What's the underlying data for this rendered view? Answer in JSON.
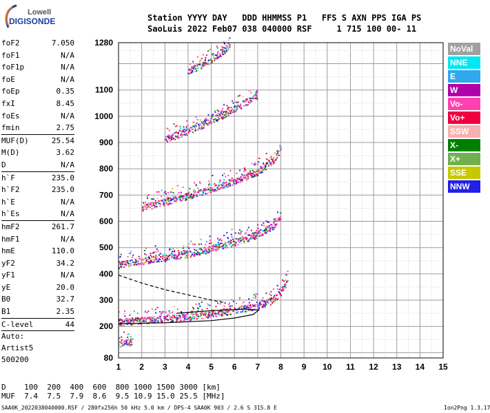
{
  "logo": {
    "line1": "Lowell",
    "line2": "DIGISONDE"
  },
  "header": {
    "row1": "Station YYYY DAY   DDD HHMMSS P1   FFS S AXN PPS IGA PS",
    "row2": "SaoLuis 2022 Feb07 038 040000 RSF     1 715 100 00- 11"
  },
  "params": [
    {
      "k": "foF2",
      "v": "7.050"
    },
    {
      "k": "foF1",
      "v": "N/A"
    },
    {
      "k": "foF1p",
      "v": "N/A"
    },
    {
      "k": "foE",
      "v": "N/A"
    },
    {
      "k": "foEp",
      "v": "0.35"
    },
    {
      "k": "fxI",
      "v": "8.45"
    },
    {
      "k": "foEs",
      "v": "N/A"
    },
    {
      "k": "fmin",
      "v": "2.75"
    },
    {
      "sep": true
    },
    {
      "k": "MUF(D)",
      "v": "25.54"
    },
    {
      "k": "M(D)",
      "v": "3.62"
    },
    {
      "k": "D",
      "v": "N/A"
    },
    {
      "sep": true
    },
    {
      "k": "h`F",
      "v": "235.0"
    },
    {
      "k": "h`F2",
      "v": "235.0"
    },
    {
      "k": "h`E",
      "v": "N/A"
    },
    {
      "k": "h`Es",
      "v": "N/A"
    },
    {
      "sep": true
    },
    {
      "k": "hmF2",
      "v": "261.7"
    },
    {
      "k": "hmF1",
      "v": "N/A"
    },
    {
      "k": "hmE",
      "v": "110.0"
    },
    {
      "k": "yF2",
      "v": "34.2"
    },
    {
      "k": "yF1",
      "v": "N/A"
    },
    {
      "k": "yE",
      "v": "20.0"
    },
    {
      "k": "B0",
      "v": "32.7"
    },
    {
      "k": "B1",
      "v": "2.35"
    },
    {
      "sep": true
    },
    {
      "k": "C-level",
      "v": "44"
    },
    {
      "sep": true
    }
  ],
  "auto": {
    "line1": "Auto:",
    "line2": "Artist5",
    "line3": "500200"
  },
  "muf_table": {
    "row1": "D    100  200  400  600  800 1000 1500 3000 [km]",
    "row2": "MUF  7.4  7.5  7.9  8.6  9.5 10.9 15.0 25.5 [MHz]"
  },
  "footer": "SAA0K_2022038040000.RSF / 280fx256h 50 kHz 5.0 km / DPS-4 SAA0K 903 / 2.6 S 315.8 E",
  "version": "Ion2Png 1.3.17",
  "legend": [
    {
      "label": "NoVal",
      "color": "#a0a0a0"
    },
    {
      "label": "NNE",
      "color": "#00e8f0"
    },
    {
      "label": "E",
      "color": "#30a8f0"
    },
    {
      "label": "W",
      "color": "#b000a8"
    },
    {
      "label": "Vo-",
      "color": "#ff40b0"
    },
    {
      "label": "Vo+",
      "color": "#f00040"
    },
    {
      "label": "SSW",
      "color": "#f8b0b0"
    },
    {
      "label": "X-",
      "color": "#008000"
    },
    {
      "label": "X+",
      "color": "#70b050"
    },
    {
      "label": "SSE",
      "color": "#c8c800"
    },
    {
      "label": "NNW",
      "color": "#2020e8"
    }
  ],
  "chart_data": {
    "type": "scatter",
    "title": "",
    "xlabel": "",
    "ylabel": "",
    "xlim": [
      1,
      15
    ],
    "ylim": [
      80,
      1280
    ],
    "x_ticks": [
      1,
      2,
      3,
      4,
      5,
      6,
      7,
      8,
      9,
      10,
      11,
      12,
      13,
      14,
      15
    ],
    "y_ticks": [
      80,
      200,
      300,
      400,
      500,
      600,
      700,
      800,
      900,
      1000,
      1100,
      1280
    ],
    "grid": true,
    "traces": [
      {
        "name": "",
        "points": [
          [
            1.0,
            218
          ],
          [
            2.0,
            224
          ],
          [
            3.0,
            230
          ],
          [
            4.0,
            238
          ],
          [
            5.0,
            250
          ],
          [
            6.0,
            262
          ],
          [
            7.0,
            280
          ],
          [
            7.6,
            300
          ],
          [
            8.0,
            330
          ],
          [
            8.3,
            380
          ]
        ]
      },
      {
        "name": "",
        "points": [
          [
            1.0,
            436
          ],
          [
            2.0,
            450
          ],
          [
            3.0,
            462
          ],
          [
            4.0,
            478
          ],
          [
            5.0,
            498
          ],
          [
            6.0,
            522
          ],
          [
            7.0,
            552
          ],
          [
            7.6,
            580
          ],
          [
            8.0,
            620
          ]
        ]
      },
      {
        "name": "",
        "points": [
          [
            2.0,
            655
          ],
          [
            3.0,
            675
          ],
          [
            4.0,
            698
          ],
          [
            5.0,
            725
          ],
          [
            6.0,
            755
          ],
          [
            7.0,
            790
          ],
          [
            7.6,
            830
          ],
          [
            8.0,
            880
          ]
        ]
      },
      {
        "name": "",
        "points": [
          [
            3.0,
            915
          ],
          [
            4.0,
            945
          ],
          [
            5.0,
            985
          ],
          [
            6.0,
            1030
          ],
          [
            7.0,
            1080
          ]
        ]
      },
      {
        "name": "",
        "points": [
          [
            4.0,
            1170
          ],
          [
            5.0,
            1215
          ],
          [
            5.8,
            1270
          ]
        ]
      },
      {
        "name": "",
        "points": [
          [
            1.0,
            135
          ],
          [
            1.6,
            143
          ]
        ]
      }
    ],
    "profile_solid": [
      [
        1.0,
        210
      ],
      [
        3.0,
        214
      ],
      [
        5.0,
        222
      ],
      [
        6.0,
        232
      ],
      [
        6.8,
        245
      ],
      [
        7.05,
        262
      ],
      [
        6.5,
        266
      ],
      [
        5.0,
        260
      ],
      [
        3.5,
        250
      ]
    ],
    "profile_dashed": [
      [
        1.0,
        395
      ],
      [
        2.0,
        365
      ],
      [
        3.0,
        340
      ],
      [
        4.0,
        320
      ],
      [
        5.0,
        300
      ],
      [
        5.6,
        290
      ]
    ]
  }
}
